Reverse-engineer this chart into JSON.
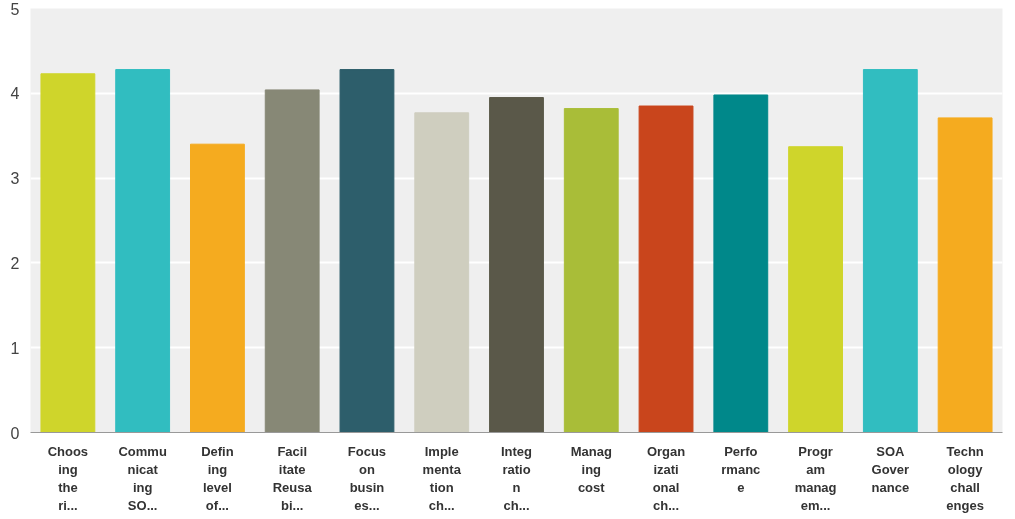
{
  "chart_data": {
    "type": "bar",
    "categories": [
      "Choos\ning\nthe\nri...",
      "Commu\nnicat\ning\nSO...",
      "Defin\ning\nlevel\nof...",
      "Facil\nitate\nReusa\nbi...",
      "Focus\non\nbusin\nes...",
      "Imple\nmenta\ntion\nch...",
      "Integ\nratio\nn\nch...",
      "Manag\ning\ncost",
      "Organ\nizati\nonal\nch...",
      "Perfo\nrmanc\ne",
      "Progr\nam\nmanag\nem...",
      "SOA\nGover\nnance",
      "Techn\nology\nchall\nenges"
    ],
    "values": [
      4.23,
      4.28,
      3.4,
      4.04,
      4.28,
      3.77,
      3.95,
      3.82,
      3.85,
      3.98,
      3.37,
      4.28,
      3.71
    ],
    "colors": [
      "#cfd52b",
      "#31bdc0",
      "#f5ab1f",
      "#878876",
      "#2d5e6b",
      "#cfcebf",
      "#5a5849",
      "#a9bd38",
      "#c9451c",
      "#00888a",
      "#cfd52b",
      "#31bdc0",
      "#f5ab1f"
    ],
    "ylim": [
      0,
      5
    ],
    "yticks": [
      0,
      1,
      2,
      3,
      4,
      5
    ],
    "grid": "y"
  }
}
